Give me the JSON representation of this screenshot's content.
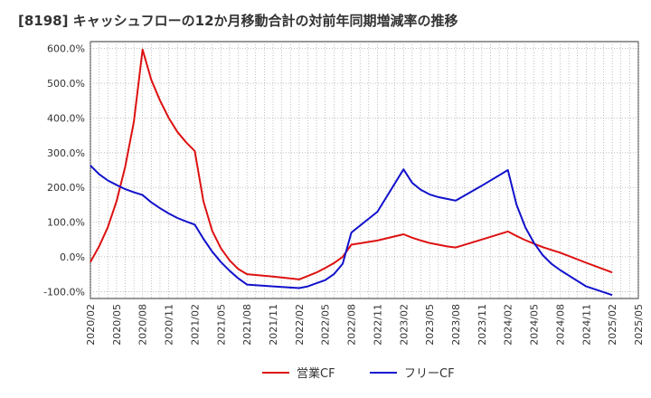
{
  "chart_data": {
    "type": "line",
    "title": "[8198]  キャッシュフローの12か月移動合計の対前年同期増減率の推移",
    "ylim": [
      -120,
      620
    ],
    "y_ticks": [
      600,
      500,
      400,
      300,
      200,
      100,
      0,
      -100
    ],
    "y_tick_labels": [
      "600.0%",
      "500.0%",
      "400.0%",
      "300.0%",
      "200.0%",
      "100.0%",
      "0.0%",
      "-100.0%"
    ],
    "x_tick_labels": [
      "2020/02",
      "2020/05",
      "2020/08",
      "2020/11",
      "2021/02",
      "2021/05",
      "2021/08",
      "2021/11",
      "2022/02",
      "2022/05",
      "2022/08",
      "2022/11",
      "2023/02",
      "2023/05",
      "2023/08",
      "2023/11",
      "2024/02",
      "2024/05",
      "2024/08",
      "2024/11",
      "2025/02",
      "2025/05"
    ],
    "grid": true,
    "legend_position": "bottom",
    "x": [
      "2020/02",
      "2020/03",
      "2020/04",
      "2020/05",
      "2020/06",
      "2020/07",
      "2020/08",
      "2020/09",
      "2020/10",
      "2020/11",
      "2020/12",
      "2021/01",
      "2021/02",
      "2021/03",
      "2021/04",
      "2021/05",
      "2021/06",
      "2021/07",
      "2021/08",
      "2021/11",
      "2022/02",
      "2022/03",
      "2022/04",
      "2022/05",
      "2022/06",
      "2022/07",
      "2022/08",
      "2022/11",
      "2023/02",
      "2023/03",
      "2023/04",
      "2023/05",
      "2023/06",
      "2023/07",
      "2023/08",
      "2023/11",
      "2024/02",
      "2024/03",
      "2024/04",
      "2024/05",
      "2024/06",
      "2024/07",
      "2024/08",
      "2024/11",
      "2025/02"
    ],
    "series": [
      {
        "name": "営業CF",
        "color": "#dd1111",
        "values": [
          -15,
          30,
          85,
          160,
          260,
          390,
          597,
          510,
          450,
          400,
          360,
          330,
          305,
          160,
          75,
          25,
          -10,
          -35,
          -50,
          -57,
          -65,
          -55,
          -45,
          -32,
          -18,
          0,
          35,
          47,
          65,
          55,
          47,
          40,
          35,
          30,
          27,
          50,
          73,
          60,
          48,
          38,
          28,
          20,
          12,
          -17,
          -45
        ]
      },
      {
        "name": "フリーCF",
        "color": "#1111cc",
        "values": [
          263,
          238,
          220,
          207,
          195,
          186,
          178,
          157,
          140,
          125,
          112,
          102,
          93,
          52,
          15,
          -15,
          -40,
          -62,
          -80,
          -85,
          -90,
          -85,
          -76,
          -67,
          -50,
          -20,
          70,
          130,
          252,
          213,
          193,
          180,
          172,
          167,
          162,
          205,
          250,
          150,
          85,
          40,
          5,
          -20,
          -38,
          -85,
          -110
        ]
      }
    ]
  }
}
